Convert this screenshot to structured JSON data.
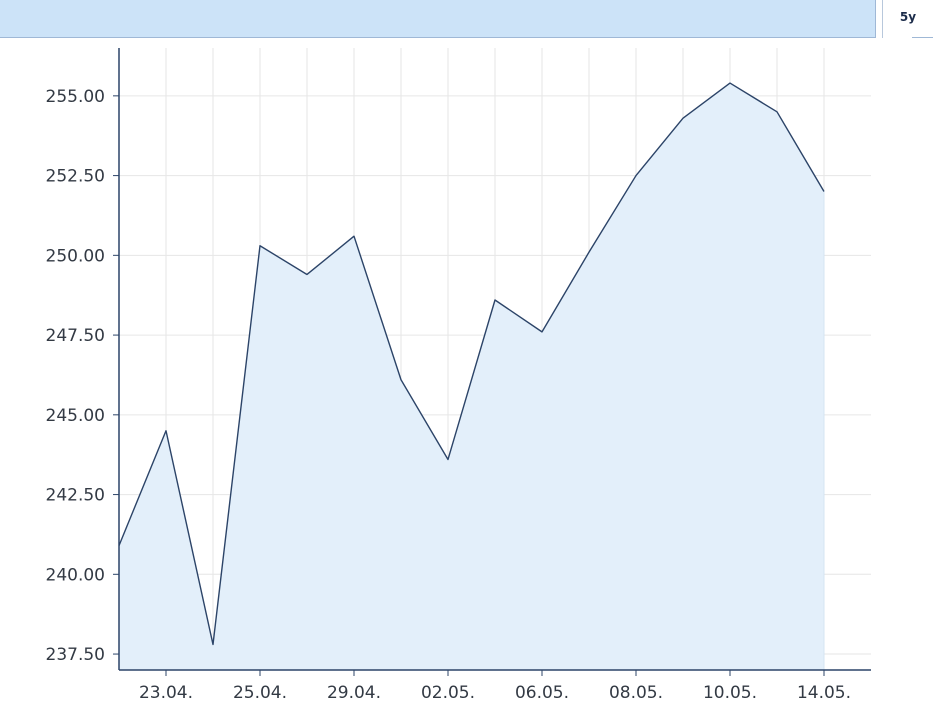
{
  "range_selector": {
    "active_label": "5y"
  },
  "colors": {
    "line": "#2c4468",
    "area_fill": "#e3effa",
    "grid": "#e6e6e6",
    "axis": "#2c4468",
    "header_bar": "#cce3f8"
  },
  "chart_data": {
    "type": "area",
    "title": "",
    "xlabel": "",
    "ylabel": "",
    "grid": true,
    "ylim": [
      237.0,
      256.5
    ],
    "y_ticks": [
      "237.50",
      "240.00",
      "242.50",
      "245.00",
      "247.50",
      "250.00",
      "252.50",
      "255.00"
    ],
    "y_tick_values": [
      237.5,
      240.0,
      242.5,
      245.0,
      247.5,
      250.0,
      252.5,
      255.0
    ],
    "x_tick_labels": [
      "23.04.",
      "25.04.",
      "29.04.",
      "02.05.",
      "06.05.",
      "08.05.",
      "10.05.",
      "14.05."
    ],
    "x_tick_indices": [
      1,
      3,
      5,
      7,
      9,
      11,
      13,
      15
    ],
    "values": [
      240.9,
      244.5,
      237.8,
      250.3,
      249.4,
      250.6,
      246.1,
      243.6,
      248.6,
      247.6,
      250.1,
      252.5,
      254.3,
      255.4,
      254.5,
      252.0
    ]
  }
}
